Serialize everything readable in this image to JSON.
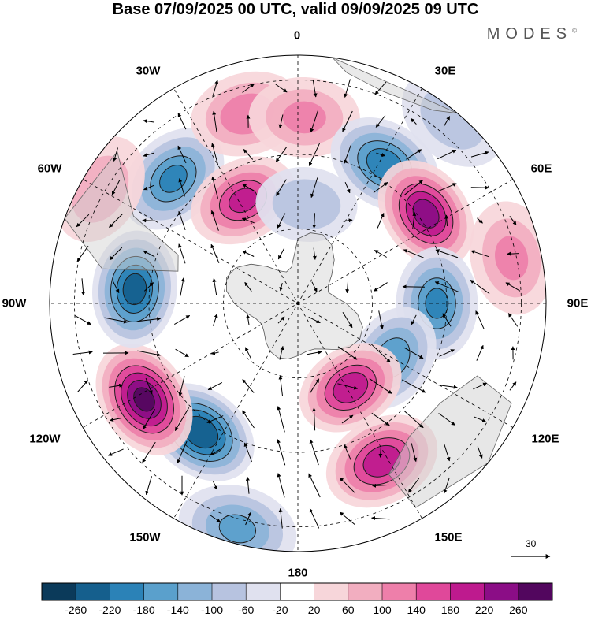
{
  "header": {
    "title": "Base 07/09/2025 00 UTC, valid 09/09/2025 09 UTC",
    "brand": "MODES",
    "brand_mark": "©"
  },
  "map": {
    "projection": "south-polar-stereographic",
    "longitude_labels": {
      "top": "0",
      "top_right_30": "30E",
      "right_60": "60E",
      "right_90": "90E",
      "right_120": "120E",
      "bottom_right_150": "150E",
      "bottom": "180",
      "bottom_left_150": "150W",
      "left_120": "120W",
      "left_90": "90W",
      "left_60": "60W",
      "top_left_30": "30W"
    },
    "anomaly_centers": [
      {
        "id": "c1",
        "lon": -45,
        "colat": 0.71,
        "value": -180
      },
      {
        "id": "c2",
        "lon": -15,
        "colat": 0.79,
        "value": 120
      },
      {
        "id": "c3",
        "lon": 2,
        "colat": 0.75,
        "value": 100
      },
      {
        "id": "c4",
        "lon": 32,
        "colat": 0.66,
        "value": -200
      },
      {
        "id": "c5",
        "lon": 55,
        "colat": 0.63,
        "value": 230
      },
      {
        "id": "c6",
        "lon": 90,
        "colat": 0.56,
        "value": -180
      },
      {
        "id": "c7",
        "lon": 120,
        "colat": 0.44,
        "value": -160
      },
      {
        "id": "c8",
        "lon": 148,
        "colat": 0.4,
        "value": 200
      },
      {
        "id": "c9",
        "lon": 152,
        "colat": 0.72,
        "value": 200
      },
      {
        "id": "c10",
        "lon": -165,
        "colat": 0.94,
        "value": -140
      },
      {
        "id": "c11",
        "lon": -143,
        "colat": 0.65,
        "value": -250
      },
      {
        "id": "c12",
        "lon": -122,
        "colat": 0.73,
        "value": 260
      },
      {
        "id": "c13",
        "lon": -85,
        "colat": 0.66,
        "value": -230
      },
      {
        "id": "c14",
        "lon": -60,
        "colat": 0.92,
        "value": 80
      },
      {
        "id": "c15",
        "lon": -28,
        "colat": 0.47,
        "value": 180
      },
      {
        "id": "c16",
        "lon": 78,
        "colat": 0.88,
        "value": 100
      },
      {
        "id": "c17",
        "lon": 40,
        "colat": 0.97,
        "value": -80
      },
      {
        "id": "c18",
        "lon": 5,
        "colat": 0.4,
        "value": -90
      }
    ],
    "vector_reference": {
      "label": "30",
      "speed": 30
    }
  },
  "colorbar": {
    "ticks": [
      "-260",
      "-220",
      "-180",
      "-140",
      "-100",
      "-60",
      "-20",
      "20",
      "60",
      "100",
      "140",
      "180",
      "220",
      "260"
    ],
    "colors": [
      "#0b3a5a",
      "#155f8d",
      "#2b82b7",
      "#5aa0cc",
      "#8bb3d8",
      "#b7c3e0",
      "#e0e1ef",
      "#ffffff",
      "#f7d6da",
      "#f2aec0",
      "#ee7faa",
      "#e0489a",
      "#be1a8e",
      "#8b0d86",
      "#52065e"
    ]
  }
}
